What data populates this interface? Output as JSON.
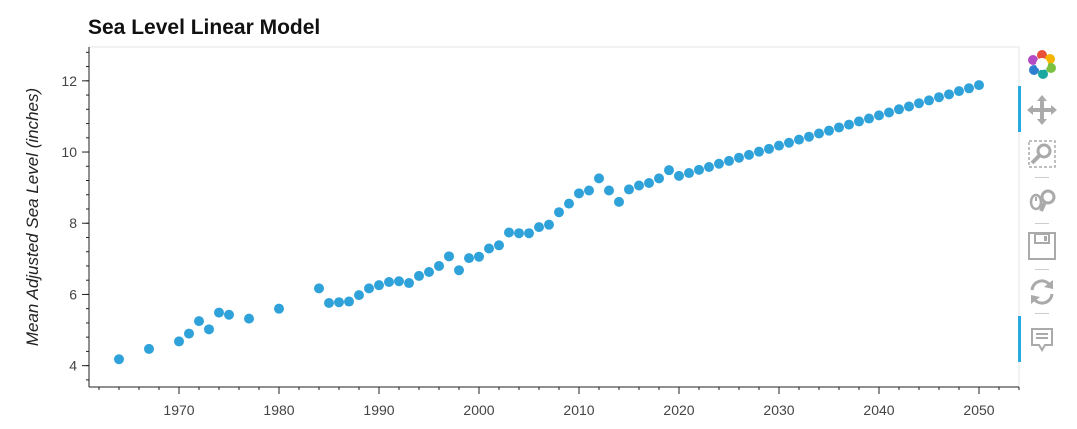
{
  "chart_data": {
    "type": "scatter",
    "title": "Sea Level Linear Model",
    "xlabel": "",
    "ylabel": "Mean Adjusted Sea Level (inches)",
    "xlim": [
      1961,
      2054
    ],
    "ylim": [
      3.4,
      12.95
    ],
    "x_ticks": [
      1970,
      1980,
      1990,
      2000,
      2010,
      2020,
      2030,
      2040,
      2050
    ],
    "y_ticks": [
      4,
      6,
      8,
      10,
      12
    ],
    "grid": false,
    "point_color": "#30a2da",
    "points": [
      {
        "x": 1964,
        "y": 4.18
      },
      {
        "x": 1967,
        "y": 4.47
      },
      {
        "x": 1970,
        "y": 4.68
      },
      {
        "x": 1971,
        "y": 4.9
      },
      {
        "x": 1972,
        "y": 5.25
      },
      {
        "x": 1973,
        "y": 5.02
      },
      {
        "x": 1974,
        "y": 5.49
      },
      {
        "x": 1975,
        "y": 5.43
      },
      {
        "x": 1977,
        "y": 5.32
      },
      {
        "x": 1980,
        "y": 5.6
      },
      {
        "x": 1984,
        "y": 6.17
      },
      {
        "x": 1985,
        "y": 5.76
      },
      {
        "x": 1986,
        "y": 5.78
      },
      {
        "x": 1987,
        "y": 5.8
      },
      {
        "x": 1988,
        "y": 5.98
      },
      {
        "x": 1989,
        "y": 6.17
      },
      {
        "x": 1990,
        "y": 6.26
      },
      {
        "x": 1991,
        "y": 6.35
      },
      {
        "x": 1992,
        "y": 6.37
      },
      {
        "x": 1993,
        "y": 6.32
      },
      {
        "x": 1994,
        "y": 6.52
      },
      {
        "x": 1995,
        "y": 6.63
      },
      {
        "x": 1996,
        "y": 6.8
      },
      {
        "x": 1997,
        "y": 7.07
      },
      {
        "x": 1998,
        "y": 6.68
      },
      {
        "x": 1999,
        "y": 7.02
      },
      {
        "x": 2000,
        "y": 7.06
      },
      {
        "x": 2001,
        "y": 7.29
      },
      {
        "x": 2002,
        "y": 7.38
      },
      {
        "x": 2003,
        "y": 7.74
      },
      {
        "x": 2004,
        "y": 7.72
      },
      {
        "x": 2005,
        "y": 7.72
      },
      {
        "x": 2006,
        "y": 7.89
      },
      {
        "x": 2007,
        "y": 7.96
      },
      {
        "x": 2008,
        "y": 8.31
      },
      {
        "x": 2009,
        "y": 8.55
      },
      {
        "x": 2010,
        "y": 8.84
      },
      {
        "x": 2011,
        "y": 8.92
      },
      {
        "x": 2012,
        "y": 9.26
      },
      {
        "x": 2013,
        "y": 8.92
      },
      {
        "x": 2014,
        "y": 8.6
      },
      {
        "x": 2015,
        "y": 8.95
      },
      {
        "x": 2016,
        "y": 9.06
      },
      {
        "x": 2017,
        "y": 9.13
      },
      {
        "x": 2018,
        "y": 9.26
      },
      {
        "x": 2019,
        "y": 9.49
      },
      {
        "x": 2020,
        "y": 9.33
      },
      {
        "x": 2021,
        "y": 9.41
      },
      {
        "x": 2022,
        "y": 9.5
      },
      {
        "x": 2023,
        "y": 9.58
      },
      {
        "x": 2024,
        "y": 9.67
      },
      {
        "x": 2025,
        "y": 9.75
      },
      {
        "x": 2026,
        "y": 9.84
      },
      {
        "x": 2027,
        "y": 9.92
      },
      {
        "x": 2028,
        "y": 10.01
      },
      {
        "x": 2029,
        "y": 10.09
      },
      {
        "x": 2030,
        "y": 10.18
      },
      {
        "x": 2031,
        "y": 10.26
      },
      {
        "x": 2032,
        "y": 10.35
      },
      {
        "x": 2033,
        "y": 10.43
      },
      {
        "x": 2034,
        "y": 10.52
      },
      {
        "x": 2035,
        "y": 10.6
      },
      {
        "x": 2036,
        "y": 10.69
      },
      {
        "x": 2037,
        "y": 10.77
      },
      {
        "x": 2038,
        "y": 10.86
      },
      {
        "x": 2039,
        "y": 10.94
      },
      {
        "x": 2040,
        "y": 11.03
      },
      {
        "x": 2041,
        "y": 11.11
      },
      {
        "x": 2042,
        "y": 11.2
      },
      {
        "x": 2043,
        "y": 11.28
      },
      {
        "x": 2044,
        "y": 11.37
      },
      {
        "x": 2045,
        "y": 11.45
      },
      {
        "x": 2046,
        "y": 11.54
      },
      {
        "x": 2047,
        "y": 11.62
      },
      {
        "x": 2048,
        "y": 11.71
      },
      {
        "x": 2049,
        "y": 11.79
      },
      {
        "x": 2050,
        "y": 11.88
      }
    ]
  },
  "toolbar": {
    "tools": [
      {
        "name": "bokeh-logo-icon",
        "active": false
      },
      {
        "name": "pan-icon",
        "active": true
      },
      {
        "name": "box-zoom-icon",
        "active": false
      },
      {
        "name": "wheel-zoom-icon",
        "active": false
      },
      {
        "name": "save-icon",
        "active": false
      },
      {
        "name": "reset-icon",
        "active": false
      },
      {
        "name": "hover-icon",
        "active": true
      }
    ],
    "icon_color": "#aaaaaa",
    "active_color": "#26aae1"
  }
}
